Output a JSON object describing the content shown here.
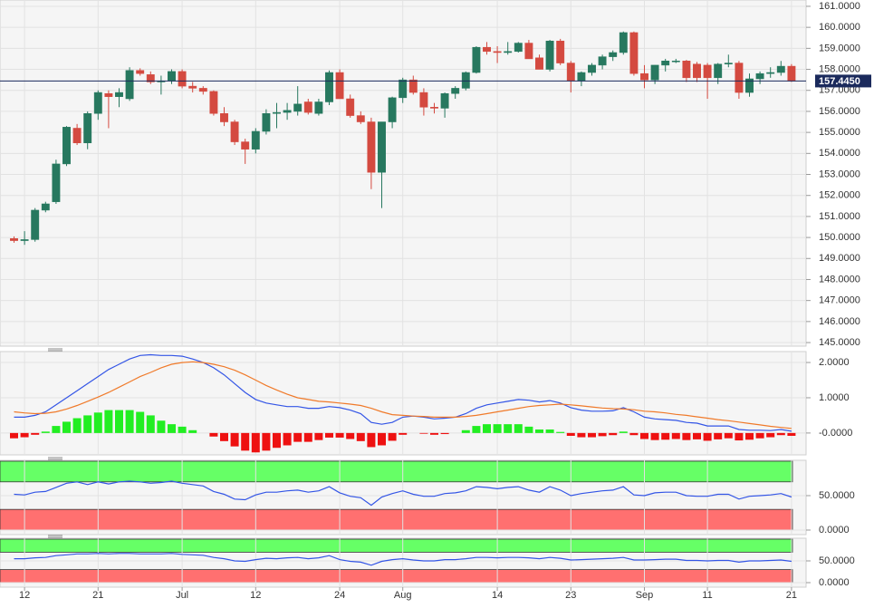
{
  "chart_data": [
    {
      "type": "candlestick",
      "categories": [
        null,
        "12",
        null,
        null,
        null,
        null,
        null,
        null,
        "21",
        null,
        null,
        null,
        null,
        null,
        null,
        null,
        "Jul",
        null,
        null,
        null,
        null,
        null,
        null,
        "12",
        null,
        null,
        null,
        null,
        null,
        null,
        null,
        "24",
        null,
        null,
        null,
        null,
        null,
        "Aug",
        null,
        null,
        null,
        null,
        null,
        null,
        null,
        null,
        "14",
        null,
        null,
        null,
        null,
        null,
        null,
        "23",
        null,
        null,
        null,
        null,
        null,
        null,
        "Sep",
        null,
        null,
        null,
        null,
        null,
        "11",
        null,
        null,
        null,
        null,
        null,
        null,
        null,
        "21"
      ],
      "open": [
        149.95,
        149.85,
        149.9,
        151.3,
        151.7,
        153.5,
        155.2,
        154.5,
        155.9,
        156.85,
        156.7,
        156.6,
        157.95,
        157.75,
        157.4,
        157.45,
        157.9,
        157.2,
        157.1,
        156.95,
        155.9,
        155.5,
        154.55,
        154.2,
        155.05,
        155.9,
        155.95,
        156.0,
        156.45,
        155.9,
        156.45,
        157.85,
        156.6,
        155.8,
        155.5,
        153.1,
        155.5,
        156.65,
        157.5,
        156.9,
        156.2,
        156.15,
        156.85,
        157.1,
        157.85,
        159.05,
        158.85,
        158.8,
        158.85,
        159.25,
        158.55,
        158.0,
        159.35,
        158.3,
        157.45,
        157.85,
        158.2,
        158.6,
        158.8,
        159.75,
        157.8,
        157.5,
        158.2,
        158.4,
        158.4,
        158.25,
        158.2,
        157.6,
        158.25,
        158.3,
        156.9,
        157.55,
        157.8,
        157.85,
        158.15
      ],
      "high": [
        150.05,
        150.3,
        151.4,
        151.7,
        153.7,
        155.3,
        155.4,
        156.0,
        157.0,
        157.0,
        157.1,
        158.1,
        158.05,
        157.9,
        157.7,
        158.0,
        158.0,
        157.4,
        157.2,
        157.0,
        156.2,
        155.6,
        154.7,
        155.2,
        156.1,
        156.4,
        156.4,
        157.2,
        156.6,
        156.6,
        157.95,
        158.0,
        156.8,
        156.0,
        155.7,
        155.5,
        156.7,
        157.6,
        157.7,
        157.1,
        156.4,
        156.9,
        157.2,
        157.9,
        159.1,
        159.3,
        159.1,
        159.3,
        159.3,
        159.4,
        158.7,
        159.4,
        159.45,
        158.4,
        157.9,
        158.3,
        158.7,
        158.9,
        159.8,
        159.8,
        158.2,
        158.2,
        158.5,
        158.5,
        158.45,
        158.35,
        158.3,
        158.3,
        158.7,
        158.4,
        157.8,
        157.9,
        158.1,
        158.4,
        158.25
      ],
      "low": [
        149.75,
        149.65,
        149.8,
        151.2,
        151.6,
        153.4,
        154.4,
        154.2,
        155.6,
        155.2,
        156.2,
        156.5,
        157.7,
        157.3,
        156.8,
        157.3,
        157.1,
        156.9,
        156.8,
        155.8,
        155.3,
        154.4,
        153.5,
        154.0,
        154.9,
        155.2,
        155.6,
        155.8,
        155.85,
        155.8,
        156.3,
        156.6,
        155.7,
        155.4,
        152.3,
        151.4,
        155.2,
        156.4,
        156.8,
        155.8,
        155.9,
        155.7,
        156.6,
        157.0,
        157.8,
        158.7,
        158.3,
        158.7,
        158.8,
        158.5,
        158.0,
        157.9,
        158.2,
        156.9,
        157.2,
        157.7,
        158.0,
        158.4,
        158.7,
        157.7,
        157.1,
        157.3,
        157.9,
        158.3,
        157.4,
        157.4,
        156.6,
        157.3,
        158.1,
        156.6,
        156.7,
        157.3,
        157.6,
        157.7,
        157.4
      ],
      "close": [
        149.85,
        149.9,
        151.3,
        151.6,
        153.5,
        155.25,
        154.5,
        155.9,
        156.9,
        156.7,
        156.9,
        157.95,
        157.8,
        157.4,
        157.45,
        157.9,
        157.2,
        157.1,
        156.95,
        155.9,
        155.5,
        154.55,
        154.2,
        155.05,
        155.9,
        155.95,
        156.05,
        156.35,
        155.95,
        156.45,
        157.85,
        156.6,
        155.8,
        155.5,
        153.1,
        155.5,
        156.65,
        157.5,
        156.9,
        156.2,
        156.15,
        156.85,
        157.1,
        157.85,
        159.05,
        158.85,
        158.8,
        158.85,
        159.25,
        158.5,
        158.0,
        159.35,
        158.3,
        157.45,
        157.85,
        158.2,
        158.6,
        158.8,
        159.75,
        157.8,
        157.5,
        158.2,
        158.4,
        158.4,
        157.6,
        157.6,
        157.6,
        158.25,
        158.3,
        156.9,
        157.55,
        157.8,
        157.85,
        158.15,
        157.445
      ],
      "up_color": "#27785f",
      "down_color": "#d44a40",
      "last_price": {
        "value": 157.445,
        "label": "157.4450"
      },
      "last_price_color": "#1b2a5c",
      "ylim": [
        144.83,
        161.3
      ],
      "yticks": [
        {
          "value": 145,
          "label": "145.0000"
        },
        {
          "value": 146,
          "label": "146.0000"
        },
        {
          "value": 147,
          "label": "147.0000"
        },
        {
          "value": 148,
          "label": "148.0000"
        },
        {
          "value": 149,
          "label": "149.0000"
        },
        {
          "value": 150,
          "label": "150.0000"
        },
        {
          "value": 151,
          "label": "151.0000"
        },
        {
          "value": 152,
          "label": "152.0000"
        },
        {
          "value": 153,
          "label": "153.0000"
        },
        {
          "value": 154,
          "label": "154.0000"
        },
        {
          "value": 155,
          "label": "155.0000"
        },
        {
          "value": 156,
          "label": "156.0000"
        },
        {
          "value": 157,
          "label": "157.0000"
        },
        {
          "value": 158,
          "label": "158.0000"
        },
        {
          "value": 159,
          "label": "159.0000"
        },
        {
          "value": 160,
          "label": "160.0000"
        },
        {
          "value": 161,
          "label": "161.0000"
        }
      ],
      "grid": true
    },
    {
      "type": "macd",
      "series": [
        {
          "color": "#3355e6",
          "values": [
            0.45,
            0.45,
            0.5,
            0.6,
            0.8,
            1.0,
            1.2,
            1.4,
            1.6,
            1.8,
            1.95,
            2.1,
            2.2,
            2.22,
            2.2,
            2.2,
            2.18,
            2.1,
            2.0,
            1.85,
            1.65,
            1.4,
            1.15,
            0.95,
            0.85,
            0.8,
            0.75,
            0.75,
            0.7,
            0.7,
            0.75,
            0.72,
            0.65,
            0.55,
            0.3,
            0.25,
            0.3,
            0.45,
            0.48,
            0.45,
            0.4,
            0.42,
            0.45,
            0.55,
            0.7,
            0.8,
            0.85,
            0.9,
            0.95,
            0.93,
            0.88,
            0.92,
            0.85,
            0.72,
            0.65,
            0.62,
            0.62,
            0.63,
            0.72,
            0.6,
            0.45,
            0.4,
            0.38,
            0.36,
            0.3,
            0.28,
            0.2,
            0.2,
            0.2,
            0.1,
            0.08,
            0.08,
            0.07,
            0.1,
            0.05
          ]
        },
        {
          "color": "#f07a2a",
          "values": [
            0.6,
            0.57,
            0.55,
            0.56,
            0.6,
            0.68,
            0.78,
            0.9,
            1.02,
            1.15,
            1.3,
            1.45,
            1.6,
            1.72,
            1.85,
            1.95,
            2.0,
            2.02,
            2.0,
            1.95,
            1.88,
            1.78,
            1.65,
            1.5,
            1.35,
            1.22,
            1.1,
            1.0,
            0.95,
            0.9,
            0.88,
            0.85,
            0.82,
            0.78,
            0.7,
            0.6,
            0.52,
            0.5,
            0.48,
            0.47,
            0.45,
            0.45,
            0.45,
            0.47,
            0.5,
            0.55,
            0.6,
            0.65,
            0.7,
            0.75,
            0.78,
            0.8,
            0.82,
            0.8,
            0.77,
            0.74,
            0.71,
            0.69,
            0.68,
            0.66,
            0.62,
            0.6,
            0.57,
            0.53,
            0.5,
            0.46,
            0.42,
            0.38,
            0.35,
            0.31,
            0.27,
            0.23,
            0.19,
            0.16,
            0.13
          ]
        }
      ],
      "histogram": {
        "up_color": "#22ee22",
        "down_color": "#ee1111",
        "values": [
          -0.15,
          -0.12,
          -0.05,
          0.04,
          0.2,
          0.32,
          0.42,
          0.5,
          0.58,
          0.65,
          0.65,
          0.65,
          0.6,
          0.5,
          0.35,
          0.25,
          0.18,
          0.08,
          0,
          -0.1,
          -0.23,
          -0.38,
          -0.5,
          -0.55,
          -0.5,
          -0.42,
          -0.35,
          -0.25,
          -0.25,
          -0.2,
          -0.13,
          -0.13,
          -0.17,
          -0.23,
          -0.4,
          -0.35,
          -0.22,
          -0.05,
          0,
          -0.02,
          -0.05,
          -0.03,
          0,
          0.08,
          0.2,
          0.25,
          0.25,
          0.25,
          0.25,
          0.18,
          0.1,
          0.1,
          0.03,
          -0.08,
          -0.12,
          -0.12,
          -0.09,
          -0.06,
          0.04,
          -0.06,
          -0.17,
          -0.2,
          -0.19,
          -0.17,
          -0.2,
          -0.18,
          -0.22,
          -0.18,
          -0.15,
          -0.21,
          -0.19,
          -0.15,
          -0.12,
          -0.06,
          -0.08
        ]
      },
      "ylim": [
        -0.62,
        2.31
      ],
      "yticks": [
        {
          "value": 0,
          "label": "-0.0000"
        },
        {
          "value": 1,
          "label": "1.0000"
        },
        {
          "value": 2,
          "label": "2.0000"
        }
      ],
      "grid": true
    },
    {
      "type": "line",
      "series": [
        {
          "color": "#3355e6",
          "values": [
            52,
            51,
            55,
            56,
            62,
            68,
            70,
            66,
            70,
            67,
            70,
            71,
            70,
            68,
            69,
            71,
            68,
            66,
            64,
            56,
            52,
            45,
            44,
            51,
            55,
            55,
            57,
            58,
            55,
            57,
            63,
            54,
            49,
            47,
            36,
            48,
            53,
            57,
            52,
            49,
            49,
            53,
            54,
            57,
            63,
            62,
            60,
            62,
            63,
            58,
            55,
            63,
            58,
            50,
            53,
            55,
            57,
            58,
            63,
            51,
            50,
            54,
            55,
            55,
            50,
            49,
            49,
            52,
            52,
            45,
            49,
            50,
            51,
            53,
            48
          ]
        }
      ],
      "zones": [
        {
          "from": 70,
          "to": 100,
          "color": "#66ff66"
        },
        {
          "from": 0,
          "to": 30,
          "color": "#ff7070"
        }
      ],
      "ylim": [
        -6.6,
        101.3
      ],
      "yticks": [
        {
          "value": 0,
          "label": "0.0000"
        },
        {
          "value": 50,
          "label": "50.0000"
        }
      ],
      "grid": true
    },
    {
      "type": "line",
      "series": [
        {
          "color": "#3355e6",
          "values": [
            55,
            55,
            57,
            58,
            62,
            64,
            66,
            66,
            67,
            66,
            67,
            67,
            66,
            66,
            66,
            67,
            65,
            64,
            63,
            58,
            55,
            50,
            49,
            53,
            56,
            55,
            57,
            58,
            55,
            57,
            62,
            53,
            49,
            47,
            40,
            49,
            53,
            55,
            52,
            50,
            50,
            53,
            53,
            55,
            58,
            58,
            57,
            58,
            58,
            57,
            55,
            58,
            56,
            52,
            53,
            54,
            55,
            56,
            58,
            52,
            52,
            53,
            54,
            54,
            51,
            51,
            50,
            51,
            51,
            47,
            50,
            50,
            51,
            52,
            49
          ]
        }
      ],
      "zones": [
        {
          "from": 70,
          "to": 100,
          "color": "#66ff66"
        },
        {
          "from": 0,
          "to": 30,
          "color": "#ff7070"
        }
      ],
      "ylim": [
        -10.4,
        102.1
      ],
      "yticks": [
        {
          "value": 0,
          "label": "0.0000"
        },
        {
          "value": 50,
          "label": "50.0000"
        }
      ],
      "grid": true
    }
  ]
}
